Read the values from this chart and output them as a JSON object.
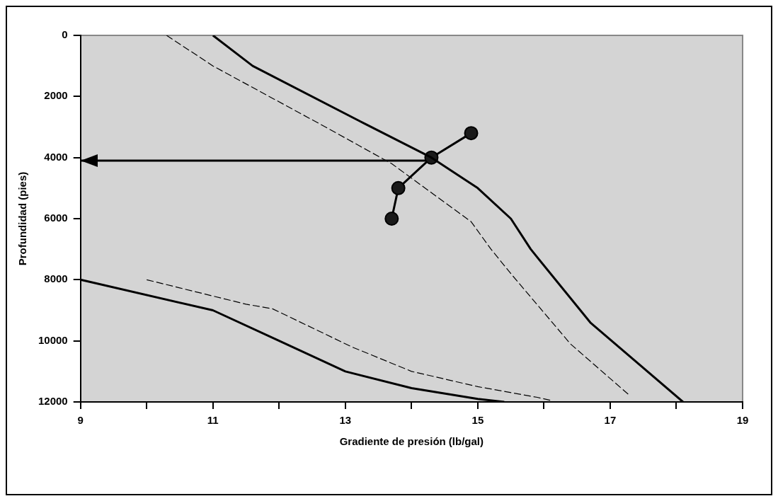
{
  "chart_data": {
    "type": "line",
    "xlabel": "Gradiente de presión (lb/gal)",
    "ylabel": "Profundidad (pies)",
    "xlim": [
      9,
      19
    ],
    "xticks": [
      9,
      {
        "value": 10,
        "label": null
      },
      11,
      {
        "value": 12,
        "label": null
      },
      13,
      {
        "value": 14,
        "label": null
      },
      15,
      {
        "value": 16,
        "label": null
      },
      17,
      {
        "value": 18,
        "label": null
      },
      19
    ],
    "ylim": [
      12000,
      0
    ],
    "yticks": [
      0,
      2000,
      4000,
      6000,
      8000,
      10000,
      12000
    ],
    "grid": false,
    "series": [
      {
        "color": "#000000",
        "line_style": "solid",
        "marker": "none",
        "x": [
          11,
          11.6,
          13.3,
          14.3,
          15,
          15.5,
          15.8,
          16.7,
          18.1
        ],
        "values": [
          0,
          1000,
          2900,
          4000,
          5000,
          6000,
          7000,
          9400,
          12000
        ]
      },
      {
        "color": "#000000",
        "line_style": "dashed",
        "marker": "none",
        "x": [
          10.3,
          11,
          12.7,
          13.7,
          14.9,
          15.2,
          15.5,
          16.4,
          17.3
        ],
        "values": [
          0,
          1000,
          3000,
          4200,
          6100,
          7000,
          7800,
          10100,
          11800
        ]
      },
      {
        "color": "#000000",
        "line_style": "solid",
        "marker": "none",
        "x": [
          9,
          11,
          12,
          13,
          14,
          15,
          15.4
        ],
        "values": [
          8000,
          9000,
          10000,
          11000,
          11550,
          11900,
          12000
        ]
      },
      {
        "color": "#000000",
        "line_style": "dashed",
        "marker": "none",
        "x": [
          10,
          11.5,
          11.9,
          13.1,
          14,
          15,
          15.9,
          16.1
        ],
        "values": [
          8000,
          8800,
          8950,
          10200,
          11000,
          11500,
          11850,
          11950
        ]
      },
      {
        "color": "#000000",
        "line_style": "solid",
        "marker": "circle",
        "x": [
          14.9,
          14.3,
          13.8,
          13.7
        ],
        "values": [
          3200,
          4000,
          5000,
          6000
        ]
      },
      {
        "color": "#000000",
        "line_style": "solid",
        "marker": "none",
        "x": [
          14.3,
          9
        ],
        "values": [
          4100,
          4100
        ]
      }
    ]
  }
}
